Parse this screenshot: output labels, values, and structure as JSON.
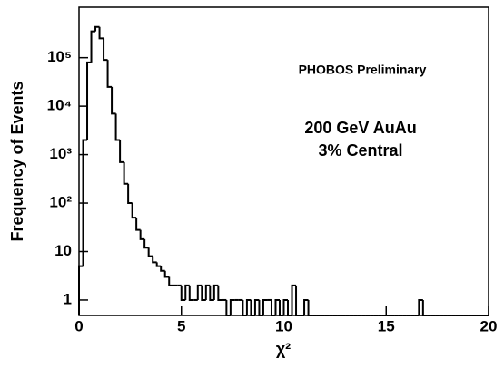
{
  "chart_data": {
    "type": "histogram",
    "xlabel": "χ²",
    "ylabel": "Frequency of Events",
    "annotations": [
      "PHOBOS Preliminary",
      "200 GeV AuAu",
      "3% Central"
    ],
    "log_y": true,
    "color": "#000000",
    "xlim": [
      0,
      20
    ],
    "ylim": [
      0.48,
      1100000
    ],
    "xticks": [
      0,
      5,
      10,
      15,
      20
    ],
    "yticks": [
      1,
      10,
      {
        "value": 100,
        "label": "10²"
      },
      {
        "value": 1000,
        "label": "10³"
      },
      {
        "value": 10000,
        "label": "10⁴"
      },
      {
        "value": 100000,
        "label": "10⁵"
      }
    ],
    "bins": [
      0,
      0.2,
      0.4,
      0.6,
      0.8,
      1,
      1.2,
      1.4,
      1.6,
      1.8,
      2,
      2.2,
      2.4,
      2.6,
      2.8,
      3,
      3.2,
      3.4,
      3.6,
      3.8,
      4,
      4.2,
      4.4,
      4.6,
      4.8,
      5,
      5.2,
      5.4,
      5.6,
      5.8,
      6,
      6.2,
      6.4,
      6.6,
      6.8,
      7,
      7.2,
      7.4,
      7.6,
      7.8,
      8,
      8.2,
      8.4,
      8.6,
      8.8,
      9,
      9.2,
      9.4,
      9.6,
      9.8,
      10,
      10.2,
      10.4,
      10.6,
      10.8,
      11,
      11.2,
      11.4,
      11.6,
      11.8,
      12,
      12.2,
      12.4,
      12.6,
      12.8,
      13,
      13.2,
      13.4,
      13.6,
      13.8,
      14,
      14.2,
      14.4,
      14.6,
      14.8,
      15,
      15.2,
      15.4,
      15.6,
      15.8,
      16,
      16.2,
      16.4,
      16.6,
      16.8,
      17,
      17.2,
      17.4,
      17.6,
      17.8,
      18,
      18.2,
      18.4,
      18.6,
      18.8,
      19,
      19.2,
      19.4,
      19.6,
      19.8,
      20
    ],
    "values": [
      5,
      2000,
      80000,
      350000,
      430000,
      250000,
      90000,
      25000,
      7000,
      2000,
      700,
      250,
      100,
      50,
      28,
      18,
      12,
      8,
      6,
      5,
      4,
      3,
      2,
      2,
      2,
      1,
      2,
      1,
      1,
      2,
      1,
      2,
      1,
      2,
      1,
      1,
      0,
      1,
      1,
      1,
      0,
      1,
      0,
      1,
      0,
      1,
      1,
      0,
      1,
      0,
      1,
      0,
      2,
      0,
      0,
      1,
      0,
      0,
      0,
      0,
      0,
      0,
      0,
      0,
      0,
      0,
      0,
      0,
      0,
      0,
      0,
      0,
      0,
      0,
      0,
      0,
      0,
      0,
      0,
      0,
      0,
      0,
      0,
      1,
      0,
      0,
      0,
      0,
      0,
      0,
      0,
      0,
      0,
      0,
      0,
      0,
      0,
      0,
      0,
      0
    ]
  }
}
